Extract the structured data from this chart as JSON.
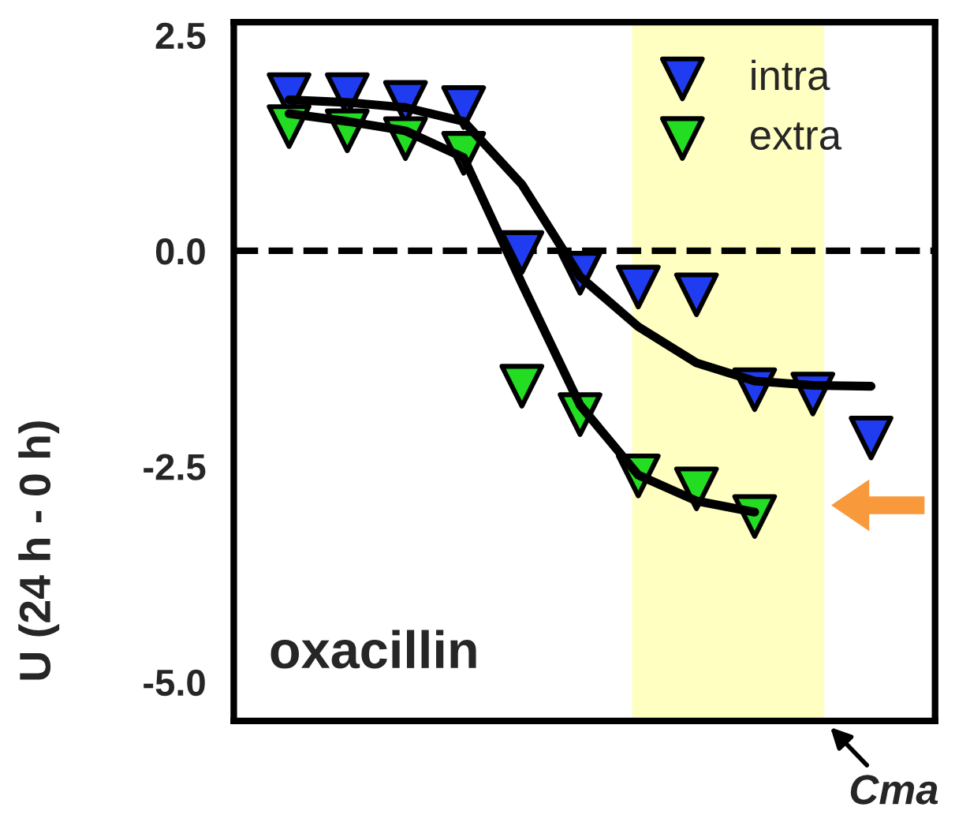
{
  "chart_data": {
    "type": "scatter",
    "ylabel": "U (24 h - 0 h)",
    "categories": [
      null,
      null,
      null,
      null,
      null,
      null,
      null,
      null,
      null,
      null,
      null
    ],
    "ylim": [
      -5.45,
      2.65
    ],
    "yticks": [
      {
        "value": 2.5,
        "label": "2.5"
      },
      {
        "value": 0,
        "label": "0.0"
      },
      {
        "value": -2.5,
        "label": "-2.5"
      },
      {
        "value": -5,
        "label": "-5.0"
      }
    ],
    "grid": false,
    "legend": "top right",
    "tick_labels": "y",
    "series": [
      {
        "name": "intra",
        "color": "#1f3cf0",
        "values": [
          1.81,
          1.81,
          1.72,
          1.66,
          -0.02,
          -0.26,
          -0.42,
          -0.51,
          -1.61,
          -1.66,
          -2.17
        ]
      },
      {
        "name": "extra",
        "color": "#22dd22",
        "values": [
          1.44,
          1.39,
          1.3,
          1.13,
          -1.57,
          -1.9,
          -2.61,
          -2.76,
          -3.08,
          null,
          null
        ]
      },
      {
        "type": "line",
        "color": "#000000",
        "line_style": "solid",
        "values": [
          1.75,
          1.72,
          1.66,
          1.5,
          0.77,
          -0.3,
          -0.88,
          -1.3,
          -1.51,
          -1.56,
          -1.57
        ]
      },
      {
        "type": "line",
        "color": "#000000",
        "line_style": "solid",
        "values": [
          1.59,
          1.5,
          1.39,
          1.08,
          -0.38,
          -1.79,
          -2.6,
          -2.9,
          -3.03,
          null,
          null
        ]
      }
    ],
    "ref_lines": [
      {
        "axis": "y",
        "value": 0,
        "color": "#000000",
        "line_style": "dashed"
      }
    ],
    "annotations": [
      "oxacillin",
      "Cma"
    ]
  }
}
